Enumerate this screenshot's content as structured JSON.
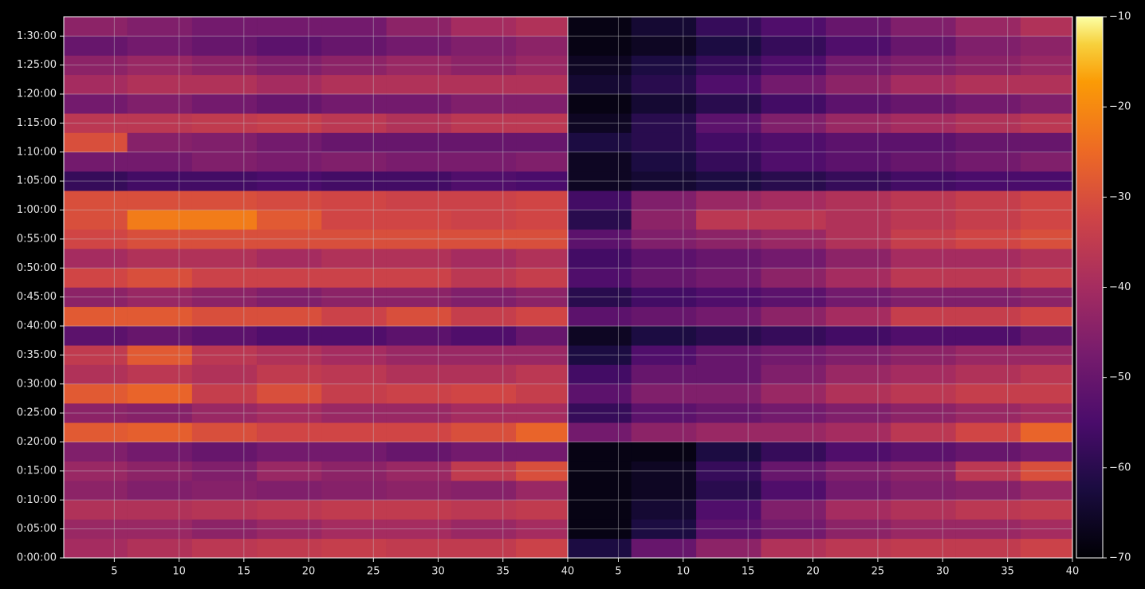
{
  "chart_data": [
    {
      "type": "heatmap",
      "xbins": [
        1.1,
        6,
        11,
        16,
        21,
        26,
        31,
        36,
        40
      ],
      "ybins": [
        0,
        200,
        400,
        600,
        800,
        1000,
        1200,
        1400,
        1600,
        1800,
        2000,
        2200,
        2400,
        2600,
        2800,
        3000,
        3200,
        3400,
        3600,
        3800,
        4000,
        4200,
        4400,
        4600,
        4800,
        5000,
        5200,
        5400,
        5600
      ],
      "xlim": [
        1.1,
        40
      ],
      "ylim": [
        0,
        5600
      ],
      "xticks": [
        5,
        10,
        15,
        20,
        25,
        30,
        35,
        40
      ],
      "yticks": [
        {
          "value": 0,
          "label": "0:00:00"
        },
        {
          "value": 300,
          "label": "0:05:00"
        },
        {
          "value": 600,
          "label": "0:10:00"
        },
        {
          "value": 900,
          "label": "0:15:00"
        },
        {
          "value": 1200,
          "label": "0:20:00"
        },
        {
          "value": 1500,
          "label": "0:25:00"
        },
        {
          "value": 1800,
          "label": "0:30:00"
        },
        {
          "value": 2100,
          "label": "0:35:00"
        },
        {
          "value": 2400,
          "label": "0:40:00"
        },
        {
          "value": 2700,
          "label": "0:45:00"
        },
        {
          "value": 3000,
          "label": "0:50:00"
        },
        {
          "value": 3300,
          "label": "0:55:00"
        },
        {
          "value": 3600,
          "label": "1:00:00"
        },
        {
          "value": 3900,
          "label": "1:05:00"
        },
        {
          "value": 4200,
          "label": "1:10:00"
        },
        {
          "value": 4500,
          "label": "1:15:00"
        },
        {
          "value": 4800,
          "label": "1:20:00"
        },
        {
          "value": 5100,
          "label": "1:25:00"
        },
        {
          "value": 5400,
          "label": "1:30:00"
        }
      ],
      "grid": true,
      "values": [
        [
          -40,
          -38,
          -36,
          -35,
          -34,
          -35,
          -35,
          -33
        ],
        [
          -42,
          -42,
          -44,
          -42,
          -40,
          -40,
          -42,
          -40
        ],
        [
          -38,
          -38,
          -37,
          -36,
          -35,
          -35,
          -36,
          -35
        ],
        [
          -44,
          -46,
          -45,
          -46,
          -45,
          -44,
          -45,
          -42
        ],
        [
          -42,
          -44,
          -46,
          -42,
          -44,
          -42,
          -35,
          -30
        ],
        [
          -46,
          -48,
          -50,
          -48,
          -48,
          -50,
          -48,
          -48
        ],
        [
          -28,
          -27,
          -30,
          -32,
          -32,
          -32,
          -30,
          -26
        ],
        [
          -44,
          -45,
          -42,
          -40,
          -42,
          -42,
          -40,
          -40
        ],
        [
          -28,
          -26,
          -34,
          -30,
          -34,
          -33,
          -32,
          -34
        ],
        [
          -38,
          -36,
          -38,
          -35,
          -36,
          -38,
          -38,
          -36
        ],
        [
          -35,
          -28,
          -36,
          -38,
          -40,
          -42,
          -42,
          -42
        ],
        [
          -52,
          -50,
          -52,
          -54,
          -54,
          -52,
          -54,
          -50
        ],
        [
          -28,
          -28,
          -30,
          -30,
          -33,
          -30,
          -34,
          -32
        ],
        [
          -44,
          -42,
          -44,
          -46,
          -44,
          -44,
          -46,
          -44
        ],
        [
          -32,
          -30,
          -33,
          -33,
          -33,
          -33,
          -36,
          -34
        ],
        [
          -40,
          -38,
          -38,
          -40,
          -38,
          -38,
          -40,
          -38
        ],
        [
          -32,
          -30,
          -30,
          -30,
          -30,
          -30,
          -30,
          -30
        ],
        [
          -30,
          -22,
          -22,
          -28,
          -32,
          -32,
          -33,
          -32
        ],
        [
          -30,
          -30,
          -30,
          -31,
          -32,
          -33,
          -33,
          -32
        ],
        [
          -58,
          -56,
          -56,
          -55,
          -56,
          -56,
          -54,
          -55
        ],
        [
          -48,
          -48,
          -46,
          -47,
          -46,
          -47,
          -47,
          -46
        ],
        [
          -30,
          -45,
          -46,
          -48,
          -50,
          -50,
          -50,
          -50
        ],
        [
          -36,
          -36,
          -35,
          -34,
          -36,
          -38,
          -36,
          -36
        ],
        [
          -48,
          -46,
          -48,
          -50,
          -48,
          -48,
          -46,
          -46
        ],
        [
          -40,
          -38,
          -38,
          -40,
          -38,
          -38,
          -38,
          -38
        ],
        [
          -44,
          -42,
          -44,
          -46,
          -44,
          -42,
          -44,
          -42
        ],
        [
          -50,
          -48,
          -50,
          -52,
          -50,
          -48,
          -46,
          -44
        ],
        [
          -44,
          -46,
          -48,
          -48,
          -48,
          -44,
          -40,
          -38
        ]
      ]
    },
    {
      "type": "heatmap",
      "xbins": [
        1.1,
        6,
        11,
        16,
        21,
        26,
        31,
        36,
        40
      ],
      "ybins": [
        0,
        200,
        400,
        600,
        800,
        1000,
        1200,
        1400,
        1600,
        1800,
        2000,
        2200,
        2400,
        2600,
        2800,
        3000,
        3200,
        3400,
        3600,
        3800,
        4000,
        4200,
        4400,
        4600,
        4800,
        5000,
        5200,
        5400,
        5600
      ],
      "xlim": [
        1.1,
        40
      ],
      "ylim": [
        0,
        5600
      ],
      "xticks": [
        5,
        10,
        15,
        20,
        25,
        30,
        35,
        40
      ],
      "grid": true,
      "values": [
        [
          -62,
          -50,
          -44,
          -38,
          -36,
          -35,
          -35,
          -33
        ],
        [
          -68,
          -62,
          -52,
          -48,
          -44,
          -42,
          -42,
          -40
        ],
        [
          -68,
          -64,
          -54,
          -46,
          -40,
          -38,
          -36,
          -35
        ],
        [
          -68,
          -66,
          -60,
          -54,
          -48,
          -46,
          -45,
          -42
        ],
        [
          -68,
          -66,
          -58,
          -50,
          -46,
          -44,
          -36,
          -30
        ],
        [
          -68,
          -68,
          -62,
          -58,
          -54,
          -52,
          -50,
          -48
        ],
        [
          -48,
          -44,
          -42,
          -42,
          -40,
          -36,
          -32,
          -26
        ],
        [
          -58,
          -52,
          -50,
          -48,
          -46,
          -44,
          -42,
          -40
        ],
        [
          -52,
          -46,
          -46,
          -42,
          -38,
          -36,
          -34,
          -34
        ],
        [
          -56,
          -50,
          -50,
          -46,
          -42,
          -40,
          -38,
          -36
        ],
        [
          -62,
          -54,
          -50,
          -48,
          -46,
          -44,
          -42,
          -42
        ],
        [
          -66,
          -62,
          -60,
          -58,
          -56,
          -54,
          -54,
          -50
        ],
        [
          -52,
          -50,
          -48,
          -44,
          -40,
          -34,
          -34,
          -32
        ],
        [
          -60,
          -56,
          -54,
          -52,
          -48,
          -46,
          -46,
          -44
        ],
        [
          -54,
          -50,
          -48,
          -44,
          -40,
          -36,
          -36,
          -34
        ],
        [
          -56,
          -52,
          -50,
          -48,
          -44,
          -40,
          -40,
          -38
        ],
        [
          -52,
          -46,
          -44,
          -42,
          -38,
          -34,
          -32,
          -30
        ],
        [
          -60,
          -44,
          -36,
          -36,
          -38,
          -36,
          -34,
          -32
        ],
        [
          -56,
          -46,
          -42,
          -40,
          -38,
          -36,
          -34,
          -32
        ],
        [
          -66,
          -64,
          -62,
          -60,
          -58,
          -56,
          -55,
          -55
        ],
        [
          -66,
          -62,
          -58,
          -54,
          -52,
          -50,
          -48,
          -46
        ],
        [
          -62,
          -60,
          -56,
          -54,
          -52,
          -52,
          -50,
          -50
        ],
        [
          -66,
          -60,
          -52,
          -46,
          -42,
          -40,
          -38,
          -36
        ],
        [
          -68,
          -64,
          -60,
          -56,
          -52,
          -50,
          -48,
          -46
        ],
        [
          -64,
          -60,
          -54,
          -48,
          -44,
          -40,
          -38,
          -38
        ],
        [
          -66,
          -62,
          -58,
          -54,
          -48,
          -46,
          -44,
          -42
        ],
        [
          -68,
          -66,
          -62,
          -58,
          -54,
          -50,
          -46,
          -44
        ],
        [
          -68,
          -64,
          -58,
          -54,
          -50,
          -46,
          -42,
          -38
        ]
      ]
    }
  ],
  "colorbar": {
    "colormap": "inferno",
    "clim": [
      -70,
      -10
    ],
    "ticks": [
      {
        "value": -10,
        "label": "−10"
      },
      {
        "value": -20,
        "label": "−20"
      },
      {
        "value": -30,
        "label": "−30"
      },
      {
        "value": -40,
        "label": "−40"
      },
      {
        "value": -50,
        "label": "−50"
      },
      {
        "value": -60,
        "label": "−60"
      },
      {
        "value": -70,
        "label": "−70"
      }
    ]
  }
}
